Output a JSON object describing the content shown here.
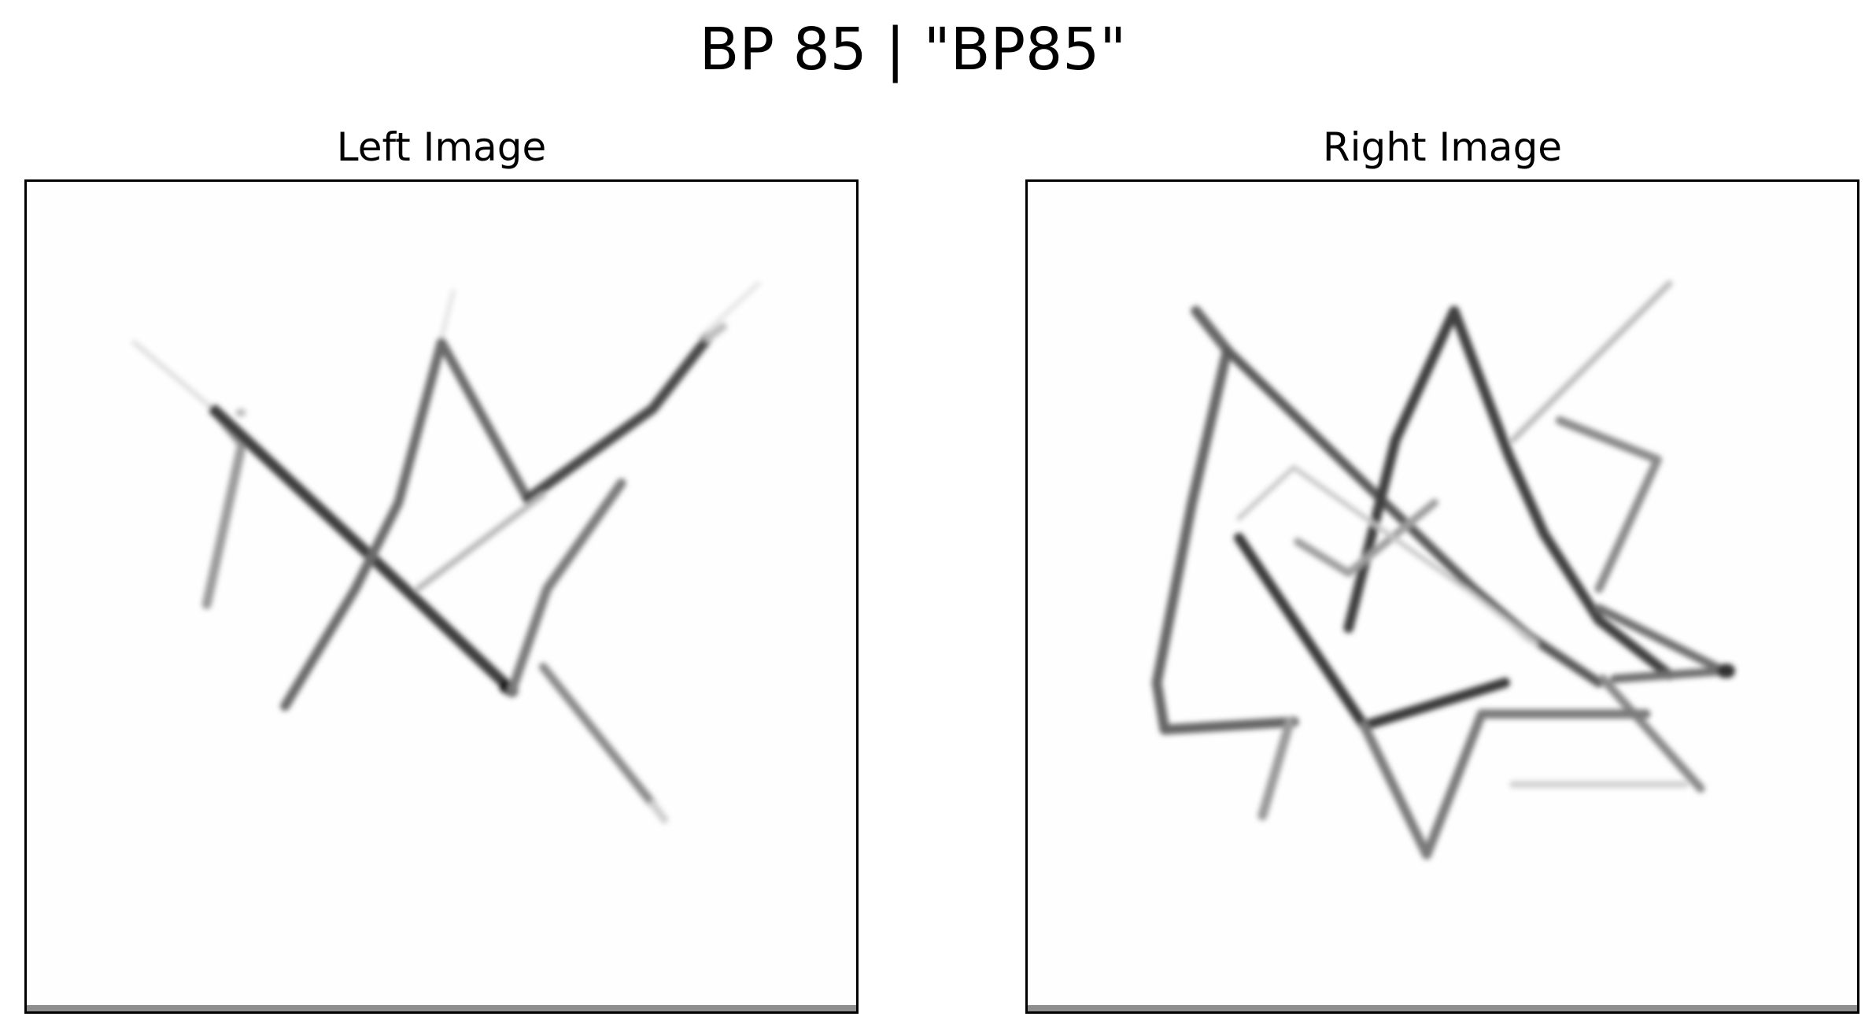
{
  "figure": {
    "title": "BP 85 | \"BP85\""
  },
  "panels": {
    "left": {
      "title": "Left Image"
    },
    "right": {
      "title": "Right Image"
    }
  }
}
